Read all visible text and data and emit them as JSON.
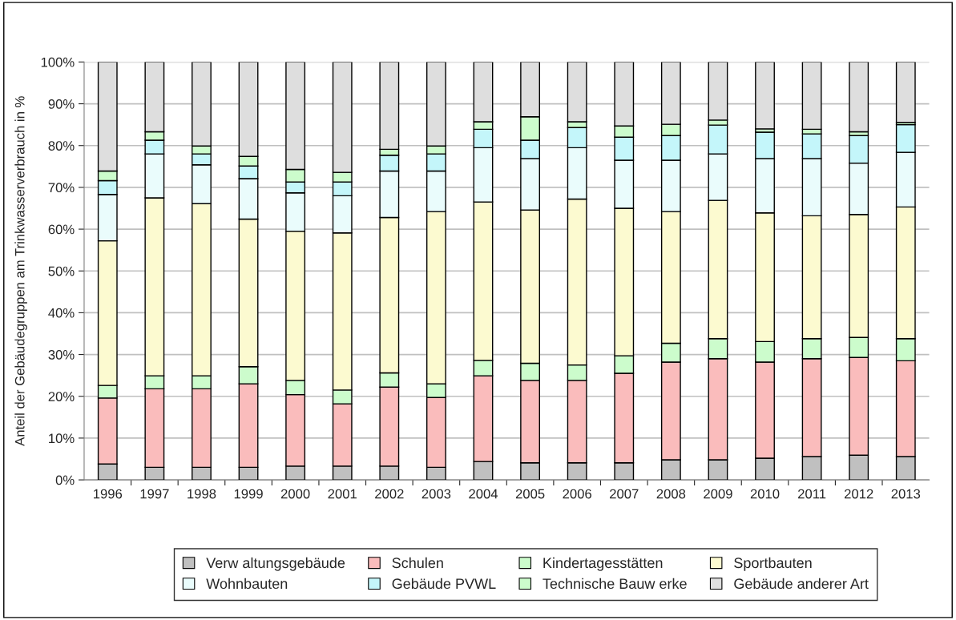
{
  "chart_data": {
    "type": "bar",
    "stacked": true,
    "ylabel": "Anteil der Gebäudegruppen am Trinkwasserverbrauch in %",
    "categories": [
      "1996",
      "1997",
      "1998",
      "1999",
      "2000",
      "2001",
      "2002",
      "2003",
      "2004",
      "2005",
      "2006",
      "2007",
      "2008",
      "2009",
      "2010",
      "2011",
      "2012",
      "2013"
    ],
    "series": [
      {
        "name": "Verw altungsgebäude",
        "color": "#c0c0c0",
        "values": [
          3.8,
          3.0,
          3.0,
          3.0,
          3.3,
          3.3,
          3.3,
          3.0,
          4.4,
          4.1,
          4.1,
          4.1,
          4.8,
          4.8,
          5.2,
          5.6,
          5.9,
          5.6
        ]
      },
      {
        "name": "Schulen",
        "color": "#fabcbc",
        "values": [
          15.8,
          18.8,
          18.8,
          20.0,
          17.1,
          14.9,
          18.9,
          16.7,
          20.5,
          19.7,
          19.7,
          21.4,
          23.4,
          24.2,
          23.0,
          23.4,
          23.4,
          22.9
        ]
      },
      {
        "name": "Kindertagesstätten",
        "color": "#ccfccc",
        "values": [
          3.0,
          3.1,
          3.1,
          4.1,
          3.4,
          3.3,
          3.4,
          3.3,
          3.7,
          4.1,
          3.7,
          4.2,
          4.5,
          4.8,
          4.9,
          4.8,
          4.8,
          5.3
        ]
      },
      {
        "name": "Sportbauten",
        "color": "#fcfad0",
        "values": [
          34.6,
          42.6,
          41.2,
          35.3,
          35.7,
          37.6,
          37.2,
          41.2,
          37.9,
          36.7,
          39.7,
          35.3,
          31.5,
          33.1,
          30.8,
          29.4,
          29.4,
          31.5
        ]
      },
      {
        "name": "Wohnbauten",
        "color": "#eafcfc",
        "values": [
          11.1,
          10.5,
          9.3,
          9.7,
          9.2,
          8.9,
          11.1,
          9.7,
          13.0,
          12.3,
          12.3,
          11.5,
          12.3,
          11.1,
          13.0,
          13.7,
          12.3,
          13.1
        ]
      },
      {
        "name": "Gebäude PVWL",
        "color": "#c4f6fa",
        "values": [
          3.3,
          3.3,
          2.6,
          3.0,
          2.6,
          3.3,
          3.8,
          4.1,
          4.4,
          4.4,
          4.8,
          5.5,
          5.9,
          6.9,
          6.3,
          5.9,
          6.6,
          6.6
        ]
      },
      {
        "name": "Technische Bauw erke",
        "color": "#ccfccc",
        "values": [
          2.3,
          2.0,
          1.9,
          2.3,
          3.0,
          2.3,
          1.4,
          1.9,
          1.8,
          5.6,
          1.4,
          2.7,
          2.7,
          1.2,
          0.8,
          1.1,
          0.9,
          0.5
        ]
      },
      {
        "name": "Gebäude anderer Art",
        "color": "#dedede",
        "values": [
          26.1,
          16.7,
          20.1,
          22.6,
          25.7,
          26.4,
          20.9,
          20.1,
          14.3,
          13.1,
          14.3,
          15.3,
          14.9,
          13.9,
          16.0,
          16.1,
          16.7,
          14.5
        ]
      }
    ],
    "ylim": [
      0,
      100
    ],
    "yticks": [
      {
        "value": 0,
        "label": "0%"
      },
      {
        "value": 10,
        "label": "10%"
      },
      {
        "value": 20,
        "label": "20%"
      },
      {
        "value": 30,
        "label": "30%"
      },
      {
        "value": 40,
        "label": "40%"
      },
      {
        "value": 50,
        "label": "50%"
      },
      {
        "value": 60,
        "label": "60%"
      },
      {
        "value": 70,
        "label": "70%"
      },
      {
        "value": 80,
        "label": "80%"
      },
      {
        "value": 90,
        "label": "90%"
      },
      {
        "value": 100,
        "label": "100%"
      }
    ],
    "grid": "y",
    "legend": "bottom"
  }
}
